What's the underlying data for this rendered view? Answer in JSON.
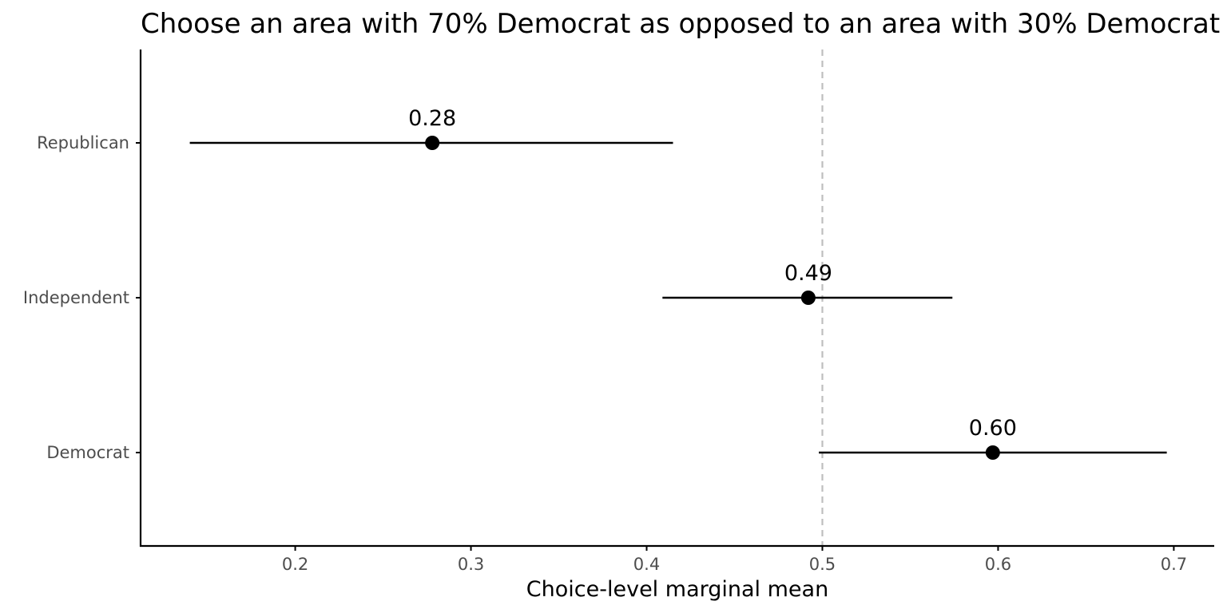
{
  "chart_data": {
    "type": "scatter",
    "subtype": "dot-and-whisker",
    "title": "Choose an area with 70% Democrat as opposed to an area with 30% Democrat",
    "xlabel": "Choice-level marginal mean",
    "ylabel": "",
    "xlim": [
      0.112,
      0.723
    ],
    "x_ticks": [
      0.2,
      0.3,
      0.4,
      0.5,
      0.6,
      0.7
    ],
    "x_tick_labels": [
      "0.2",
      "0.3",
      "0.4",
      "0.5",
      "0.6",
      "0.7"
    ],
    "categories": [
      "Republican",
      "Independent",
      "Democrat"
    ],
    "points": [
      {
        "category": "Republican",
        "estimate": 0.278,
        "lower": 0.14,
        "upper": 0.415,
        "label": "0.28"
      },
      {
        "category": "Independent",
        "estimate": 0.492,
        "lower": 0.409,
        "upper": 0.574,
        "label": "0.49"
      },
      {
        "category": "Democrat",
        "estimate": 0.597,
        "lower": 0.498,
        "upper": 0.696,
        "label": "0.60"
      }
    ],
    "reference_line": {
      "x": 0.5,
      "style": "dashed",
      "color": "#bebebe"
    },
    "grid": false,
    "legend": "none",
    "colors": {
      "point": "#000000",
      "errorbar": "#000000",
      "axis": "#000000",
      "tick_label": "#4d4d4d"
    }
  }
}
